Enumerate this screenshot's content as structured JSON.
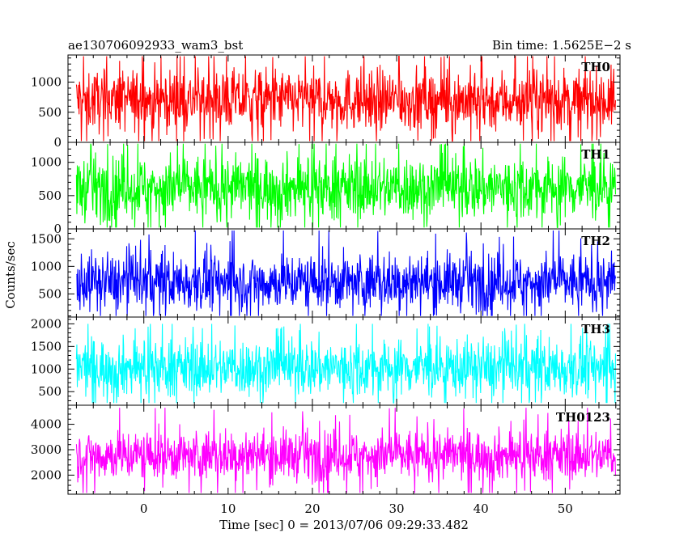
{
  "header": {
    "title": "ae130706092933_wam3_bst",
    "bin_time": "Bin time: 1.5625E−2 s"
  },
  "axes": {
    "ylabel": "Counts/sec",
    "xlabel": "Time [sec] 0 = 2013/07/06 09:29:33.482"
  },
  "colors": {
    "TH0": "#ff0000",
    "TH1": "#00ff00",
    "TH2": "#0000ff",
    "TH3": "#00ffff",
    "TH0123": "#ff00ff"
  },
  "chart_data": {
    "type": "line",
    "title": "ae130706092933_wam3_bst",
    "xlabel": "Time [sec] 0 = 2013/07/06 09:29:33.482",
    "ylabel": "Counts/sec",
    "xlim": [
      -9,
      56.5
    ],
    "x_ticks": [
      0,
      10,
      20,
      30,
      40,
      50
    ],
    "x_data_range": [
      -8,
      56
    ],
    "bin_time_s": 0.015625,
    "grid": false,
    "panels": [
      {
        "name": "TH0",
        "color": "#ff0000",
        "ylim": [
          0,
          1450
        ],
        "y_ticks": [
          0,
          500,
          1000
        ],
        "mean": 700,
        "band_low": 300,
        "band_high": 1100,
        "min": 20,
        "max": 1430
      },
      {
        "name": "TH1",
        "color": "#00ff00",
        "ylim": [
          0,
          1300
        ],
        "y_ticks": [
          0,
          500,
          1000
        ],
        "mean": 620,
        "band_low": 250,
        "band_high": 1000,
        "min": 20,
        "max": 1280
      },
      {
        "name": "TH2",
        "color": "#0000ff",
        "ylim": [
          80,
          1680
        ],
        "y_ticks": [
          500,
          1000,
          1500
        ],
        "mean": 720,
        "band_low": 350,
        "band_high": 1150,
        "min": 100,
        "max": 1650
      },
      {
        "name": "TH3",
        "color": "#00ffff",
        "ylim": [
          200,
          2150
        ],
        "y_ticks": [
          500,
          1000,
          1500,
          2000
        ],
        "mean": 1030,
        "band_low": 550,
        "band_high": 1550,
        "min": 250,
        "max": 2000
      },
      {
        "name": "TH0123",
        "color": "#ff00ff",
        "ylim": [
          1250,
          4750
        ],
        "y_ticks": [
          2000,
          3000,
          4000
        ],
        "mean": 2780,
        "band_low": 2000,
        "band_high": 3550,
        "min": 1300,
        "max": 4650
      }
    ]
  }
}
